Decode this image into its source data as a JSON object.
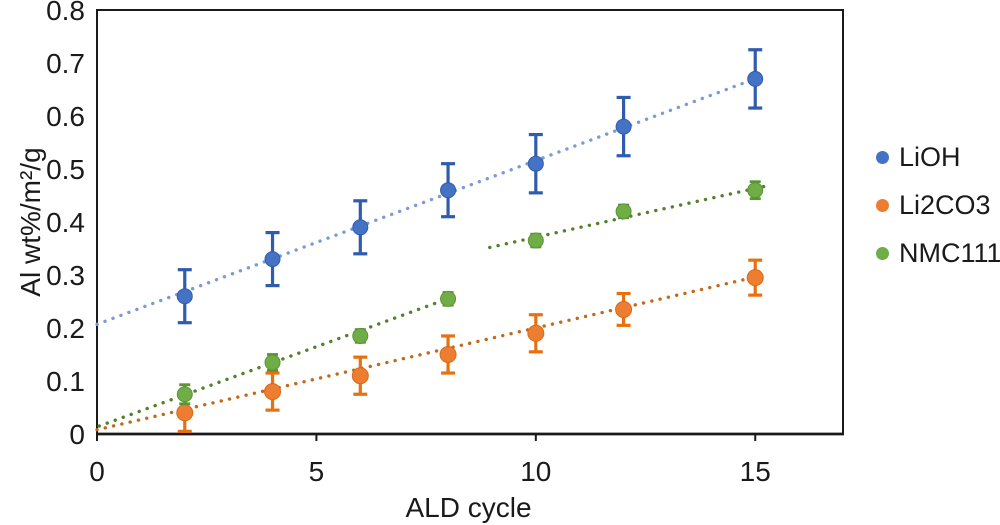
{
  "figure": {
    "background": "#ffffff"
  },
  "chart_data": {
    "type": "scatter",
    "title": "",
    "xlabel": "ALD cycle",
    "ylabel": "Al wt%/m²/g",
    "xlim": [
      0,
      17
    ],
    "ylim": [
      0,
      0.8
    ],
    "grid": false,
    "legend_position": "right",
    "axis_color": "#1a1a1a",
    "text_color": "#1a1a1a",
    "x_ticks": [
      0,
      5,
      10,
      15
    ],
    "x_tick_labels": [
      "0",
      "5",
      "10",
      "15"
    ],
    "y_ticks": [
      0,
      0.1,
      0.2,
      0.3,
      0.4,
      0.5,
      0.6,
      0.7,
      0.8
    ],
    "y_tick_labels": [
      "0",
      "0.1",
      "0.2",
      "0.3",
      "0.4",
      "0.5",
      "0.6",
      "0.7",
      "0.8"
    ],
    "series": [
      {
        "name": "LiOH",
        "marker_color": "#4472c4",
        "marker_stroke": "#2f5cad",
        "errorbar_color": "#2f5cad",
        "trend_color": "#7a9cd2",
        "marker_radius": 7.5,
        "errorbar_stroke_width": 3.2,
        "cap_halfwidth": 7,
        "x": [
          2,
          4,
          6,
          8,
          10,
          12,
          15
        ],
        "y": [
          0.26,
          0.33,
          0.39,
          0.46,
          0.51,
          0.58,
          0.67
        ],
        "yerr": [
          0.05,
          0.05,
          0.05,
          0.05,
          0.055,
          0.055,
          0.055
        ],
        "trendlines": [
          {
            "x1": 0,
            "y1": 0.207,
            "x2": 15.15,
            "y2": 0.675
          }
        ]
      },
      {
        "name": "Li2CO3",
        "marker_color": "#ed7d31",
        "marker_stroke": "#d86b15",
        "errorbar_color": "#e8700f",
        "trend_color": "#c06a1c",
        "marker_radius": 8,
        "errorbar_stroke_width": 3.2,
        "cap_halfwidth": 7,
        "x": [
          2,
          4,
          6,
          8,
          10,
          12,
          15
        ],
        "y": [
          0.04,
          0.08,
          0.11,
          0.15,
          0.19,
          0.235,
          0.295
        ],
        "yerr": [
          0.035,
          0.035,
          0.035,
          0.035,
          0.035,
          0.03,
          0.033
        ],
        "trendlines": [
          {
            "x1": 0,
            "y1": 0.008,
            "x2": 15.2,
            "y2": 0.3
          }
        ]
      },
      {
        "name": "NMC111",
        "marker_color": "#70ad47",
        "marker_stroke": "#5a9436",
        "errorbar_color": "#5a9436",
        "trend_color": "#567f2b",
        "marker_radius": 7.5,
        "errorbar_stroke_width": 2.8,
        "cap_halfwidth": 5.5,
        "x": [
          2,
          4,
          6,
          8,
          10,
          12,
          15
        ],
        "y": [
          0.075,
          0.135,
          0.185,
          0.255,
          0.365,
          0.42,
          0.46
        ],
        "yerr": [
          0.018,
          0.015,
          0.012,
          0.012,
          0.012,
          0.012,
          0.016
        ],
        "trendlines": [
          {
            "x1": 0.05,
            "y1": 0.015,
            "x2": 8.15,
            "y2": 0.26
          },
          {
            "x1": 8.95,
            "y1": 0.352,
            "x2": 15.2,
            "y2": 0.467
          }
        ]
      }
    ]
  }
}
